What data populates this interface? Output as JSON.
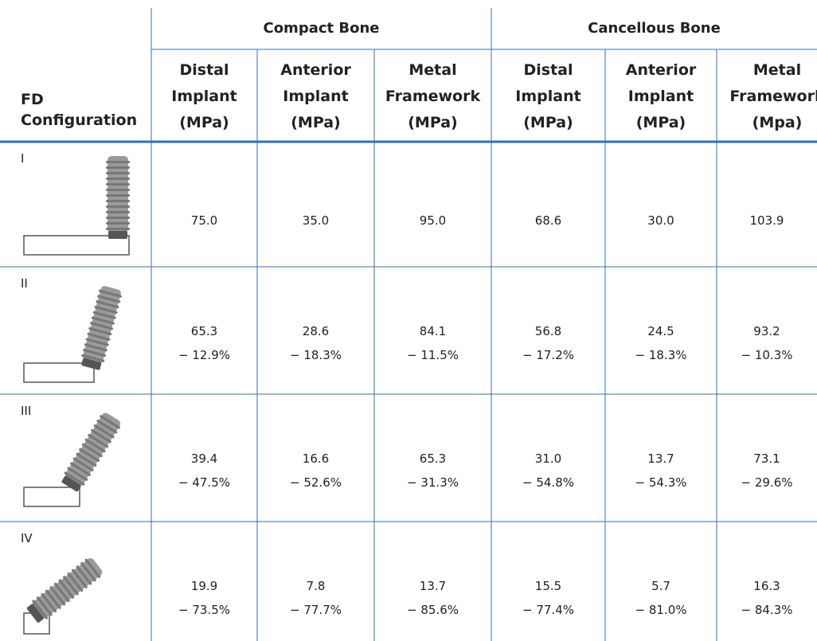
{
  "table": {
    "row_header": [
      "FD",
      "Configuration"
    ],
    "groups": [
      "Compact Bone",
      "Cancellous Bone"
    ],
    "columns": [
      [
        "Distal",
        "Implant",
        "(MPa)"
      ],
      [
        "Anterior",
        "Implant",
        "(MPa)"
      ],
      [
        "Metal",
        "Framework",
        "(MPa)"
      ],
      [
        "Distal",
        "Implant",
        "(MPa)"
      ],
      [
        "Anterior",
        "Implant",
        "(MPa)"
      ],
      [
        "Metal",
        "Framework",
        "(Mpa)"
      ]
    ],
    "rows": [
      {
        "label": "I",
        "values": [
          "75.0",
          "35.0",
          "95.0",
          "68.6",
          "30.0",
          "103.9"
        ]
      },
      {
        "label": "II",
        "values": [
          "65.3",
          "28.6",
          "84.1",
          "56.8",
          "24.5",
          "93.2"
        ],
        "changes": [
          "− 12.9%",
          "− 18.3%",
          "− 11.5%",
          "− 17.2%",
          "− 18.3%",
          "− 10.3%"
        ]
      },
      {
        "label": "III",
        "values": [
          "39.4",
          "16.6",
          "65.3",
          "31.0",
          "13.7",
          "73.1"
        ],
        "changes": [
          "− 47.5%",
          "− 52.6%",
          "− 31.3%",
          "− 54.8%",
          "− 54.3%",
          "− 29.6%"
        ]
      },
      {
        "label": "IV",
        "values": [
          "19.9",
          "7.8",
          "13.7",
          "15.5",
          "5.7",
          "16.3"
        ],
        "changes": [
          "− 73.5%",
          "− 77.7%",
          "− 85.6%",
          "− 77.4%",
          "− 81.0%",
          "− 84.3%"
        ]
      }
    ]
  }
}
